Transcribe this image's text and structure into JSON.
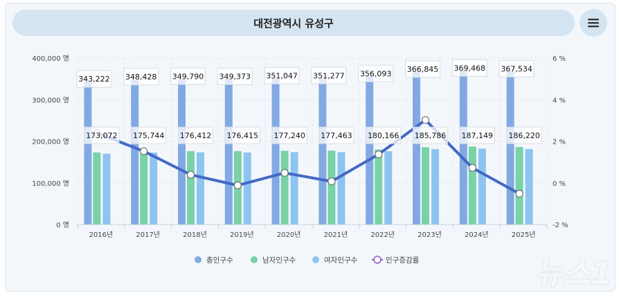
{
  "header": {
    "title": "대전광역시 유성구",
    "menu_icon": "hamburger-menu-icon"
  },
  "watermark_logo": "뉴스1",
  "chart_data": {
    "type": "bar+line",
    "categories": [
      "2016년",
      "2017년",
      "2018년",
      "2019년",
      "2020년",
      "2021년",
      "2022년",
      "2023년",
      "2024년",
      "2025년"
    ],
    "series": [
      {
        "name": "총인구수",
        "type": "bar",
        "axis": "left",
        "color": "#82a9e3",
        "values": [
          343222,
          348428,
          349790,
          349373,
          351047,
          351277,
          356093,
          366845,
          369468,
          367534
        ],
        "labels": [
          "343,222",
          "348,428",
          "349,790",
          "349,373",
          "351,047",
          "351,277",
          "356,093",
          "366,845",
          "369,468",
          "367,534"
        ]
      },
      {
        "name": "남자인구수",
        "type": "bar",
        "axis": "left",
        "color": "#79d2a8",
        "values": [
          173072,
          175744,
          176412,
          176415,
          177240,
          177463,
          180166,
          185786,
          187149,
          186220
        ],
        "labels": [
          "173,072",
          "175,744",
          "176,412",
          "176,415",
          "177,240",
          "177,463",
          "180,166",
          "185,786",
          "187,149",
          "186,220"
        ]
      },
      {
        "name": "여자인구수",
        "type": "bar",
        "axis": "left",
        "color": "#8ec4f0",
        "values": [
          170150,
          172684,
          173378,
          172958,
          173807,
          173814,
          175927,
          181059,
          182319,
          181314
        ]
      },
      {
        "name": "인구증감률",
        "type": "line",
        "axis": "right",
        "color": "#4468c4",
        "values": [
          2.4,
          1.52,
          0.39,
          -0.12,
          0.48,
          0.07,
          1.37,
          3.02,
          0.72,
          -0.52
        ]
      }
    ],
    "y_left": {
      "range": [
        0,
        400000
      ],
      "ticks": [
        "0 명",
        "100,000 명",
        "200,000 명",
        "300,000 명",
        "400,000 명"
      ]
    },
    "y_right": {
      "range": [
        -2,
        6
      ],
      "ticks": [
        "-2 %",
        "0 %",
        "2 %",
        "4 %",
        "6 %"
      ]
    },
    "grid": true,
    "legend_position": "bottom"
  }
}
